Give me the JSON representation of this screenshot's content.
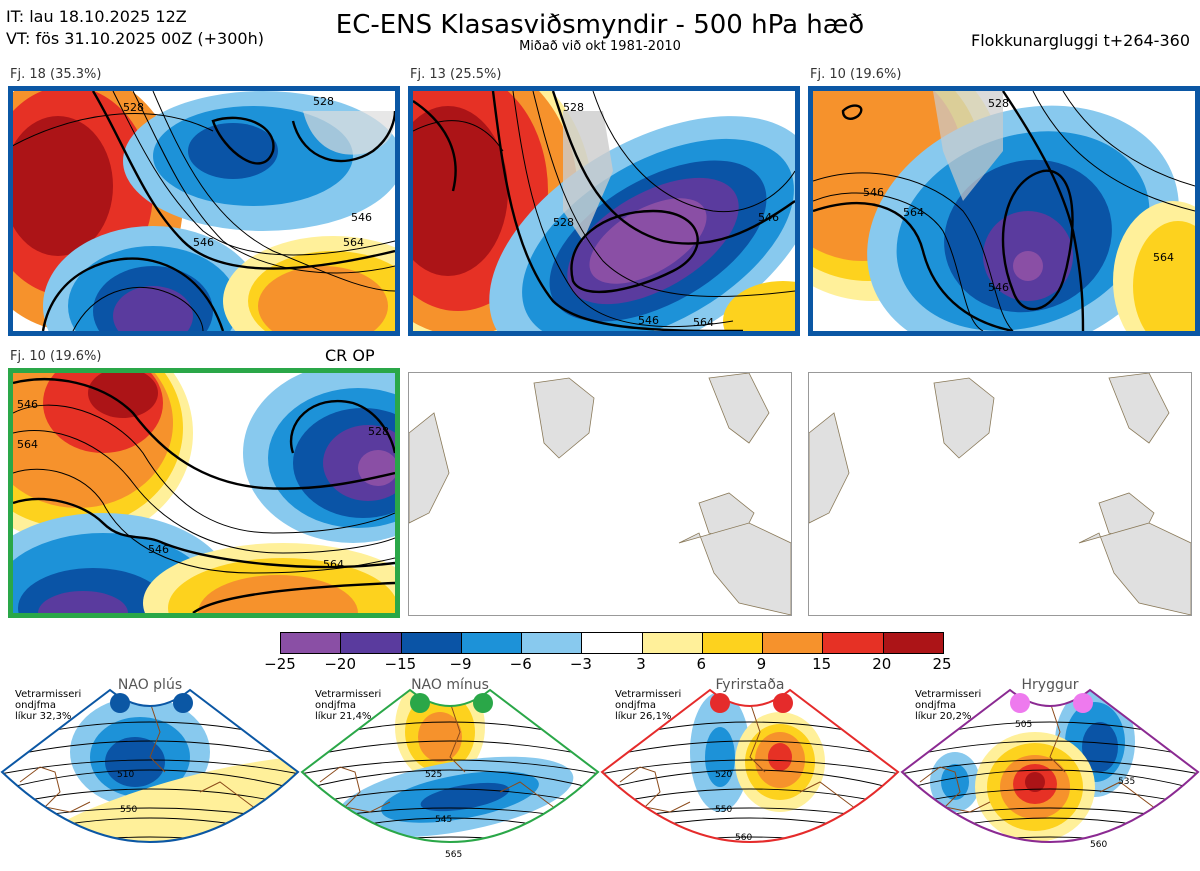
{
  "header": {
    "init_time": "IT: lau 18.10.2025 12Z",
    "valid_time": "VT: fös 31.10.2025 00Z  (+300h)",
    "title": "EC-ENS Klasasviðsmyndir - 500 hPa hæð",
    "subtitle": "Miðað við okt 1981-2010",
    "window": "Flokkunargluggi t+264-360"
  },
  "panels": [
    {
      "label": "Fj. 18 (35.3%)",
      "contour_labels": [
        "528",
        "546",
        "564",
        "546",
        "528"
      ]
    },
    {
      "label": "Fj. 13 (25.5%)",
      "contour_labels": [
        "528",
        "546",
        "564",
        "528",
        "546"
      ]
    },
    {
      "label": "Fj. 10 (19.6%)",
      "contour_labels": [
        "528",
        "546",
        "564",
        "546",
        "564"
      ]
    },
    {
      "label": "Fj. 10 (19.6%)",
      "tag": "CR OP",
      "contour_labels": [
        "546",
        "564",
        "528",
        "546",
        "564"
      ]
    }
  ],
  "chart_data": {
    "type": "heatmap",
    "title": "EC-ENS Klasasviðsmyndir - 500 hPa hæð",
    "colorbar": {
      "ticks": [
        "−25",
        "−20",
        "−15",
        "−9",
        "−6",
        "−3",
        "3",
        "6",
        "9",
        "15",
        "20",
        "25"
      ],
      "colors": [
        "#8a4fa5",
        "#5a3b9e",
        "#0a54a6",
        "#1d92d8",
        "#88c9ee",
        "#ffffff",
        "#fff09a",
        "#fdd21e",
        "#f6922c",
        "#e63125",
        "#ac1417"
      ]
    },
    "clusters": [
      {
        "name": "Fj. 18",
        "members": 18,
        "percent": 35.3
      },
      {
        "name": "Fj. 13",
        "members": 13,
        "percent": 25.5
      },
      {
        "name": "Fj. 10",
        "members": 10,
        "percent": 19.6
      },
      {
        "name": "Fj. 10",
        "members": 10,
        "percent": 19.6,
        "tag": "CR OP"
      }
    ]
  },
  "regimes": [
    {
      "title": "NAO plús",
      "note": [
        "Vetrarmisseri",
        "ondjfma",
        "líkur 32,3%"
      ],
      "color": "#0b57a4",
      "dot_color": "#0b57a4",
      "labels": [
        "510",
        "550"
      ]
    },
    {
      "title": "NAO mínus",
      "note": [
        "Vetrarmisseri",
        "ondjfma",
        "líkur 21,4%"
      ],
      "color": "#2aa748",
      "dot_color": "#2aa748",
      "labels": [
        "525",
        "545",
        "565"
      ]
    },
    {
      "title": "Fyrirstaða",
      "note": [
        "Vetrarmisseri",
        "ondjfma",
        "líkur 26,1%"
      ],
      "color": "#e52b2b",
      "dot_color": "#e52b2b",
      "labels": [
        "520",
        "550",
        "560"
      ]
    },
    {
      "title": "Hryggur",
      "note": [
        "Vetrarmisseri",
        "ondjfma",
        "líkur 20,2%"
      ],
      "color": "#8b2a92",
      "dot_color": "#ee7aee",
      "labels": [
        "505",
        "535",
        "560"
      ]
    }
  ]
}
